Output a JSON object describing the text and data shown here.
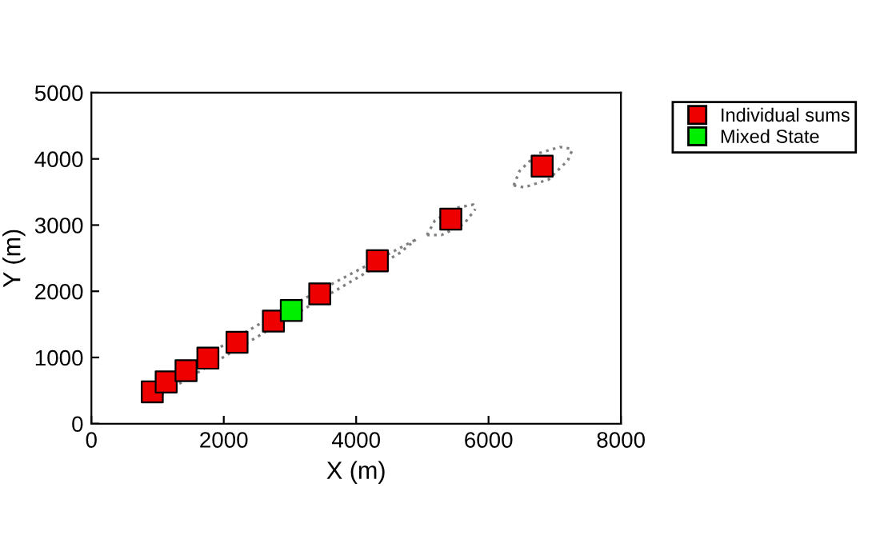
{
  "chart_data": {
    "type": "scatter",
    "xlabel": "X (m)",
    "ylabel": "Y (m)",
    "xlim": [
      0,
      8000
    ],
    "ylim": [
      0,
      5000
    ],
    "xticks": [
      0,
      2000,
      4000,
      6000,
      8000
    ],
    "yticks": [
      0,
      1000,
      2000,
      3000,
      4000,
      5000
    ],
    "grid": false,
    "legend": "top right",
    "series": [
      {
        "type": "line",
        "color": "#808080",
        "line_style": "dotted",
        "marker": "none",
        "x": [
          850,
          2970,
          4900
        ],
        "values": [
          510,
          1760,
          2780
        ]
      },
      {
        "type": "line",
        "color": "#808080",
        "line_style": "dotted",
        "marker": "none",
        "x": [
          850,
          920,
          2970,
          4660,
          4900
        ],
        "values": [
          510,
          360,
          1590,
          2580,
          2780
        ]
      },
      {
        "type": "line",
        "color": "#808080",
        "line_style": "dotted",
        "marker": "none",
        "x": [
          5070,
          5190,
          5510,
          5770,
          5800
        ],
        "values": [
          2850,
          3070,
          3260,
          3310,
          3240
        ]
      },
      {
        "type": "line",
        "color": "#808080",
        "line_style": "dotted",
        "marker": "none",
        "x": [
          5070,
          5290,
          5630,
          5800
        ],
        "values": [
          2850,
          2850,
          3020,
          3240
        ]
      },
      {
        "type": "line",
        "color": "#808080",
        "line_style": "dotted",
        "marker": "none",
        "x": [
          6380,
          6470,
          6740,
          7080,
          7270
        ],
        "values": [
          3600,
          3820,
          4080,
          4180,
          4150
        ]
      },
      {
        "type": "line",
        "color": "#808080",
        "line_style": "dotted",
        "marker": "none",
        "x": [
          6380,
          6540,
          6910,
          7200,
          7270
        ],
        "values": [
          3600,
          3570,
          3690,
          3980,
          4150
        ]
      },
      {
        "name": "Individual sums",
        "color": "#ee0000",
        "marker": "square",
        "x": [
          920,
          1130,
          1430,
          1760,
          2200,
          2750,
          3450,
          4320,
          5430,
          6810
        ],
        "values": [
          480,
          630,
          800,
          990,
          1230,
          1550,
          1960,
          2460,
          3090,
          3890
        ]
      },
      {
        "name": "Mixed State",
        "color": "#00ee00",
        "marker": "square",
        "x": [
          3020
        ],
        "values": [
          1710
        ]
      }
    ]
  }
}
